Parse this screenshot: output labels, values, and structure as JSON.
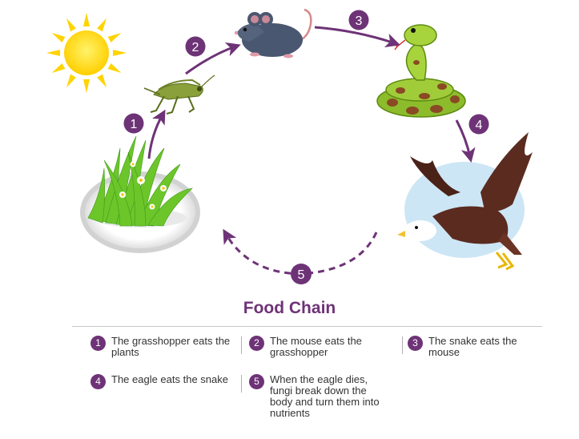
{
  "colors": {
    "accent": "#6e3377",
    "text": "#333333",
    "sun": "#ffd400",
    "grass": "#6cc62a",
    "grasshopper": "#8aa03a",
    "mouse": "#4a5770",
    "snake_body": "#8cbc2b",
    "snake_spots": "#8a4a24",
    "eagle": "#5b2b20",
    "sky": "#cde6f5"
  },
  "icons": [
    "sun-icon",
    "grass-icon",
    "grasshopper-icon",
    "mouse-icon",
    "snake-icon",
    "eagle-icon"
  ],
  "diagram": {
    "step_numbers": [
      "1",
      "2",
      "3",
      "4",
      "5"
    ]
  },
  "title": "Food Chain",
  "legend": [
    {
      "num": "1",
      "text": "The grasshopper eats the plants"
    },
    {
      "num": "2",
      "text": "The mouse eats the grasshopper"
    },
    {
      "num": "3",
      "text": "The snake eats the mouse"
    },
    {
      "num": "4",
      "text": "The eagle eats the snake"
    },
    {
      "num": "5",
      "text": "When the eagle dies, fungi break down the body and turn them into nutrients"
    }
  ]
}
